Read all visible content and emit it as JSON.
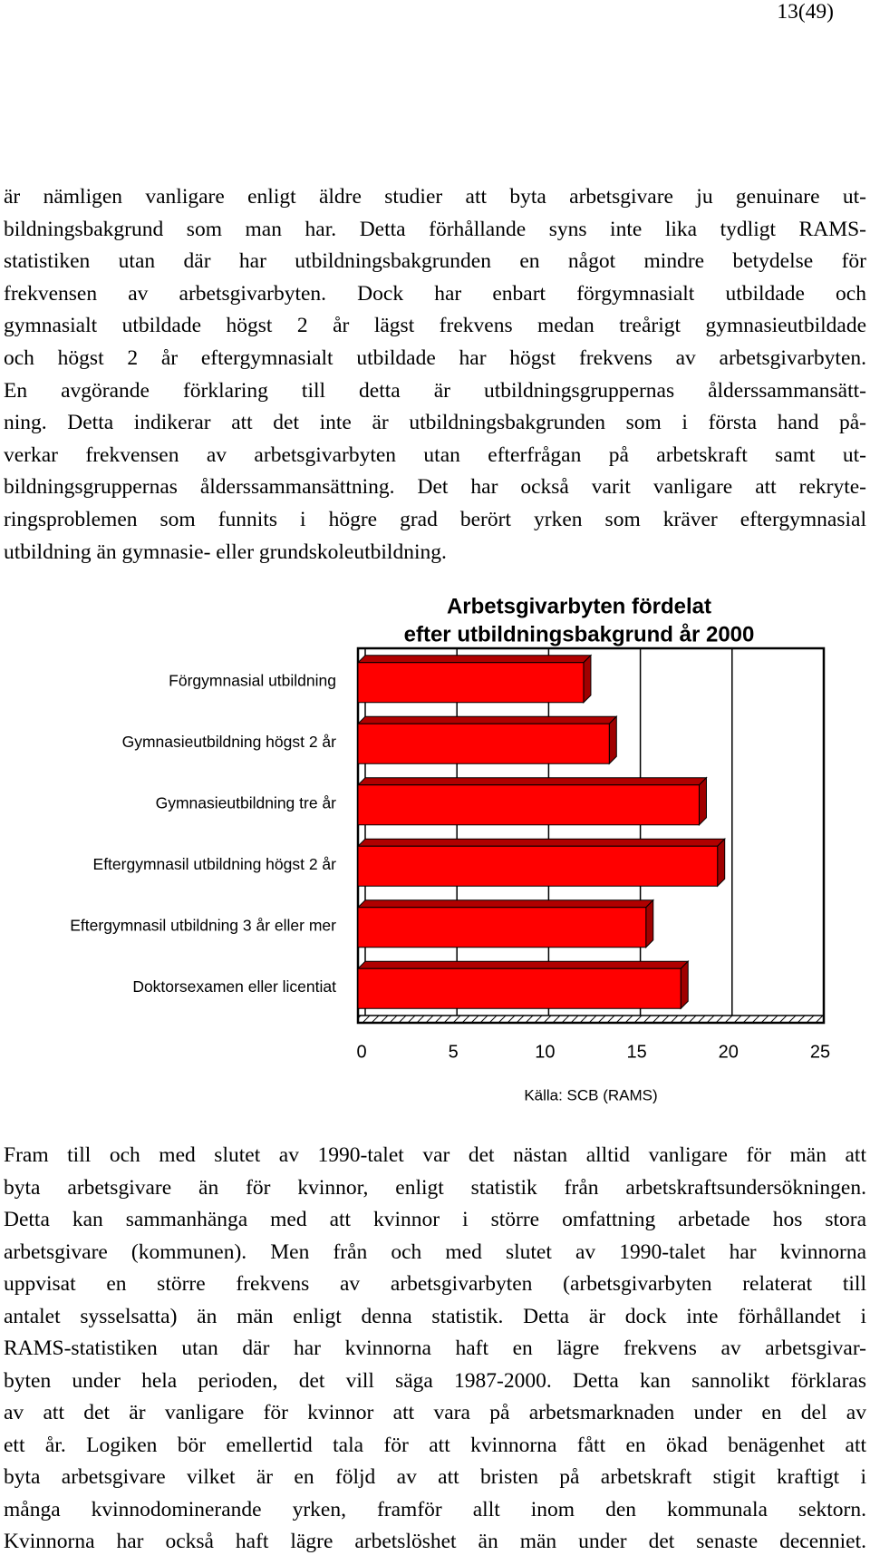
{
  "page_number": "13(49)",
  "paragraphs": [
    {
      "lines": [
        "är nämligen vanligare enligt äldre studier att byta arbetsgivare ju genuinare ut-",
        "bildningsbakgrund som man har. Detta förhållande syns inte lika tydligt RAMS-",
        "statistiken utan där har utbildningsbakgrunden en något mindre betydelse för",
        "frekvensen av arbetsgivarbyten. Dock har enbart förgymnasialt utbildade och",
        "gymnasialt utbildade högst 2 år lägst frekvens medan treårigt gymnasieutbildade",
        "och högst 2 år eftergymnasialt utbildade har högst frekvens av arbetsgivarbyten.",
        "En avgörande förklaring till detta är utbildningsgruppernas ålderssammansätt-",
        "ning. Detta indikerar att det inte är utbildningsbakgrunden som i första hand på-",
        "verkar frekvensen av arbetsgivarbyten utan efterfrågan på arbetskraft samt ut-",
        "bildningsgruppernas ålderssammansättning. Det har också varit vanligare att rekryte-",
        "ringsproblemen som funnits i högre grad berört yrken som kräver eftergymnasial",
        "utbildning än gymnasie- eller grundskoleutbildning."
      ]
    },
    {
      "lines": [
        "Fram till och med slutet av 1990-talet var det nästan alltid vanligare för män att",
        "byta arbetsgivare än för kvinnor, enligt statistik från arbetskraftsundersökningen.",
        "Detta kan sammanhänga med att kvinnor i större omfattning arbetade hos stora",
        "arbetsgivare (kommunen). Men från och med slutet av 1990-talet har kvinnorna",
        "uppvisat en större frekvens av arbetsgivarbyten (arbetsgivarbyten relaterat till",
        "antalet sysselsatta) än män enligt denna statistik. Detta är dock inte förhållandet i",
        "RAMS-statistiken utan där har kvinnorna haft en lägre frekvens av arbetsgivar-",
        "byten under hela perioden, det vill säga 1987-2000. Detta kan sannolikt förklaras",
        "av att det är vanligare för kvinnor att vara på arbetsmarknaden under en del av",
        "ett år. Logiken bör emellertid tala för att kvinnorna fått en ökad benägenhet att",
        "byta arbetsgivare vilket är en följd av att bristen på arbetskraft stigit kraftigt i",
        "många kvinnodominerande yrken, framför allt inom den kommunala sektorn.",
        "Kvinnorna har också haft lägre arbetslöshet än män under det senaste decenniet."
      ]
    }
  ],
  "chart_data": {
    "type": "bar",
    "title": [
      "Arbetsgivarbyten fördelat",
      "efter utbildningsbakgrund år 2000"
    ],
    "source": "Källa: SCB (RAMS)",
    "categories": [
      "Förgymnasial utbildning",
      "Gymnasieutbildning högst 2 år",
      "Gymnasieutbildning tre år",
      "Eftergymnasil utbildning högst 2 år",
      "Eftergymnasil utbildning 3 år eller mer",
      "Doktorsexamen eller licentiat"
    ],
    "values": [
      12.3,
      13.7,
      18.6,
      19.6,
      15.7,
      17.6
    ],
    "color": "#ff0000",
    "xlim": [
      0,
      25
    ],
    "xticks": [
      0,
      5,
      10,
      15,
      20,
      25
    ],
    "grid": true
  }
}
